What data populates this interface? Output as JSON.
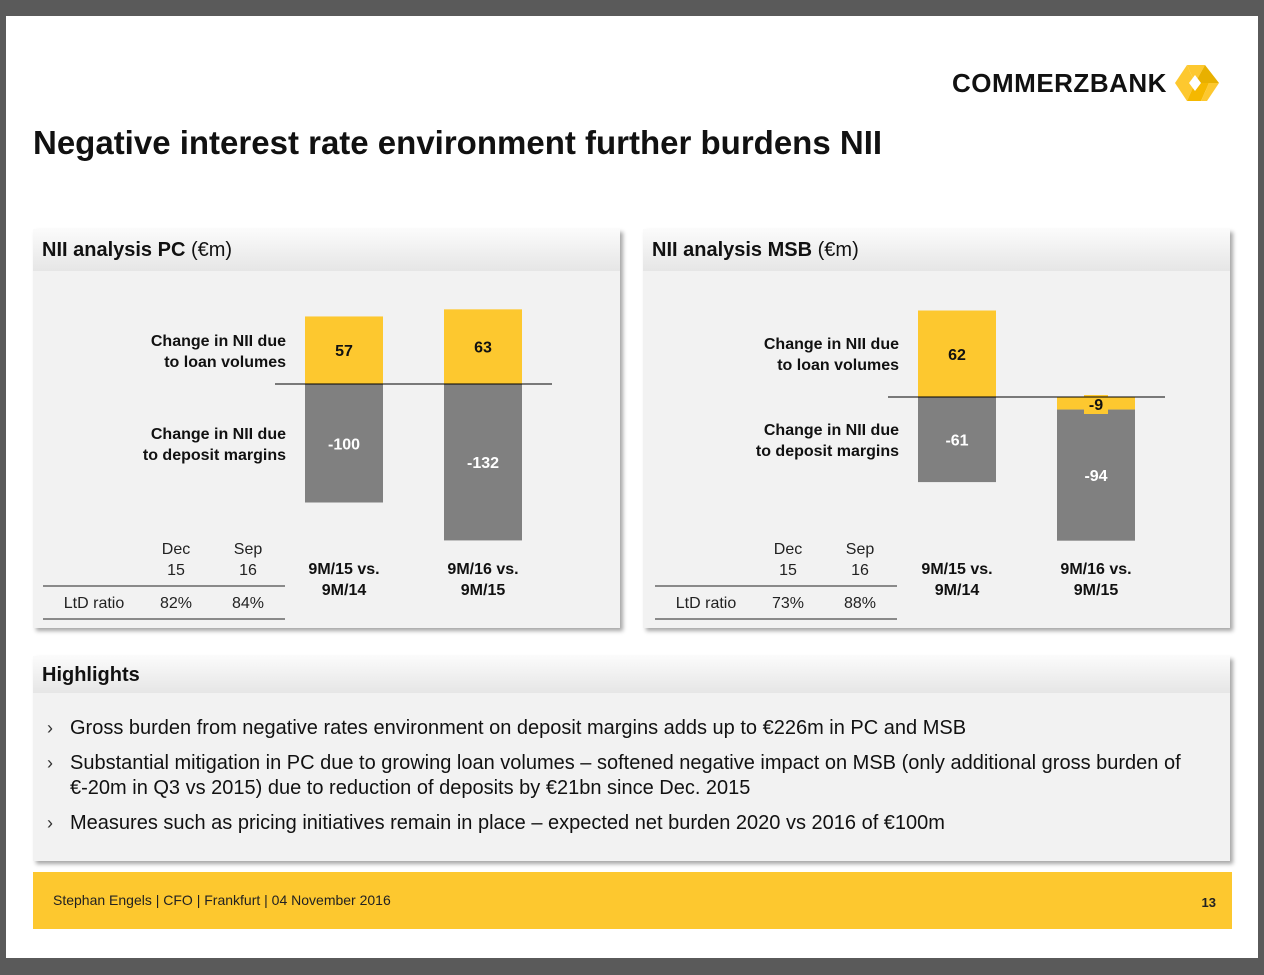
{
  "logo": {
    "name": "COMMERZBANK",
    "icon": "commerzbank-ribbon-icon"
  },
  "title": "Negative interest rate environment further burdens NII",
  "colors": {
    "accent": "#FDC82F",
    "bar_positive": "#FDC82F",
    "bar_negative": "#808080"
  },
  "panels": [
    {
      "title_bold": "NII analysis PC",
      "title_unit": "(€m)",
      "label_loan": [
        "Change in NII due",
        "to loan volumes"
      ],
      "label_deposit": [
        "Change in NII due",
        "to deposit margins"
      ],
      "ltd": {
        "headers": [
          [
            "Dec",
            "15"
          ],
          [
            "Sep",
            "16"
          ]
        ],
        "row_label": "LtD ratio",
        "values": [
          "82%",
          "84%"
        ]
      }
    },
    {
      "title_bold": "NII analysis MSB",
      "title_unit": "(€m)",
      "label_loan": [
        "Change in NII due",
        "to loan volumes"
      ],
      "label_deposit": [
        "Change in NII due",
        "to deposit margins"
      ],
      "ltd": {
        "headers": [
          [
            "Dec",
            "15"
          ],
          [
            "Sep",
            "16"
          ]
        ],
        "row_label": "LtD ratio",
        "values": [
          "73%",
          "88%"
        ]
      }
    }
  ],
  "chart_data": [
    {
      "type": "bar",
      "title": "NII analysis PC (€m)",
      "categories": [
        [
          "9M/15 vs.",
          "9M/14"
        ],
        [
          "9M/16 vs.",
          "9M/15"
        ]
      ],
      "series": [
        {
          "name": "Change in NII due to loan volumes",
          "values": [
            57,
            63
          ],
          "labels": [
            "57",
            "63"
          ]
        },
        {
          "name": "Change in NII due to deposit margins",
          "values": [
            -100,
            -132
          ],
          "labels": [
            "-100",
            "-132"
          ]
        }
      ],
      "stacked": true
    },
    {
      "type": "bar",
      "title": "NII analysis MSB (€m)",
      "categories": [
        [
          "9M/15 vs.",
          "9M/14"
        ],
        [
          "9M/16 vs.",
          "9M/15"
        ]
      ],
      "series": [
        {
          "name": "Change in NII due to loan volumes",
          "values": [
            62,
            -9
          ],
          "labels": [
            "62",
            "-9"
          ]
        },
        {
          "name": "Change in NII due to deposit margins",
          "values": [
            -61,
            -94
          ],
          "labels": [
            "-61",
            "-94"
          ]
        }
      ],
      "stacked": true
    }
  ],
  "highlights": {
    "title": "Highlights",
    "bullet": "›",
    "items": [
      "Gross burden from negative rates environment on deposit margins adds up to €226m in PC and MSB",
      "Substantial mitigation in PC due to growing loan volumes – softened negative impact on MSB (only additional gross burden of €-20m in Q3 vs 2015) due to reduction of deposits by €21bn since Dec. 2015",
      "Measures such as pricing initiatives remain in place – expected net burden 2020 vs 2016 of €100m"
    ]
  },
  "footer": {
    "text": "Stephan Engels  |  CFO  |  Frankfurt  | 04 November 2016",
    "page": "13"
  }
}
